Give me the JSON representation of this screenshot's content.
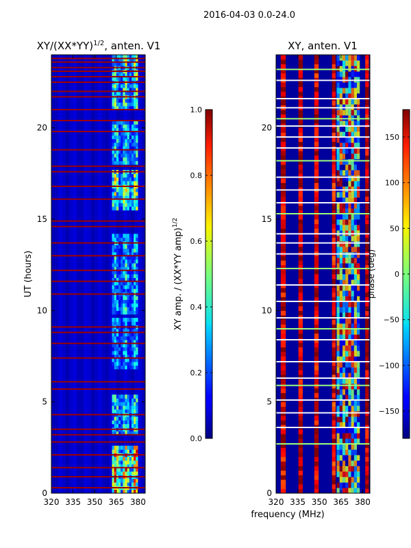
{
  "suptitle": "2016-04-03 0.0-24.0",
  "shared_xlabel": "frequency (MHz)",
  "chart_data": [
    {
      "type": "heatmap",
      "title_prefix": "XY/(XX*YY)",
      "title_exponent": "1/2",
      "title_suffix": ", anten. V1",
      "ylabel": "UT (hours)",
      "xlim": [
        320,
        385
      ],
      "ylim": [
        0,
        24
      ],
      "x_ticks": [
        {
          "value": 320,
          "label": "320"
        },
        {
          "value": 335,
          "label": "335"
        },
        {
          "value": 350,
          "label": "350"
        },
        {
          "value": 365,
          "label": "365"
        },
        {
          "value": 380,
          "label": "380"
        }
      ],
      "y_ticks": [
        {
          "value": 0,
          "label": "0"
        },
        {
          "value": 5,
          "label": "5"
        },
        {
          "value": 10,
          "label": "10"
        },
        {
          "value": 15,
          "label": "15"
        },
        {
          "value": 20,
          "label": "20"
        }
      ],
      "colorbar": {
        "label_prefix": "XY amp. / (XX*YY amp)",
        "label_exponent": "1/2",
        "range": [
          0.0,
          1.0
        ],
        "ticks": [
          {
            "value": 0.0,
            "label": "0.0"
          },
          {
            "value": 0.2,
            "label": "0.2"
          },
          {
            "value": 0.4,
            "label": "0.4"
          },
          {
            "value": 0.6,
            "label": "0.6"
          },
          {
            "value": 0.8,
            "label": "0.8"
          },
          {
            "value": 1.0,
            "label": "1.0"
          }
        ],
        "colormap": "jet"
      },
      "background_value": 0.06,
      "flagged_rows_ut": [
        0.3,
        0.9,
        1.4,
        2.1,
        2.8,
        3.2,
        3.5,
        4.3,
        5.7,
        6.1,
        7.4,
        8.2,
        8.8,
        9.1,
        10.9,
        11.6,
        12.2,
        13.0,
        13.7,
        14.6,
        14.9,
        16.1,
        16.8,
        17.6,
        17.9,
        18.8,
        19.8,
        20.4,
        21.0,
        21.7,
        22.0,
        22.5,
        22.8,
        23.1,
        23.3,
        23.6,
        23.8
      ],
      "bright_band_mhz": [
        362,
        380
      ],
      "bright_intervals_ut": [
        [
          0.0,
          2.6,
          0.72
        ],
        [
          3.2,
          5.3,
          0.45
        ],
        [
          6.8,
          9.5,
          0.35
        ],
        [
          9.8,
          14.0,
          0.38
        ],
        [
          15.5,
          17.5,
          0.55
        ],
        [
          18.0,
          20.2,
          0.42
        ],
        [
          21.0,
          24.0,
          0.5
        ]
      ]
    },
    {
      "type": "heatmap",
      "title": "XY, anten. V1",
      "xlim": [
        320,
        385
      ],
      "ylim": [
        0,
        24
      ],
      "x_ticks": [
        {
          "value": 320,
          "label": "320"
        },
        {
          "value": 335,
          "label": "335"
        },
        {
          "value": 350,
          "label": "350"
        },
        {
          "value": 365,
          "label": "365"
        },
        {
          "value": 380,
          "label": "380"
        }
      ],
      "y_ticks": [
        {
          "value": 0,
          "label": "0"
        },
        {
          "value": 5,
          "label": "5"
        },
        {
          "value": 10,
          "label": "10"
        },
        {
          "value": 15,
          "label": "15"
        },
        {
          "value": 20,
          "label": "20"
        }
      ],
      "colorbar": {
        "label": "phase (deg)",
        "range": [
          -180,
          180
        ],
        "ticks": [
          {
            "value": -150,
            "label": "−150"
          },
          {
            "value": -100,
            "label": "−100"
          },
          {
            "value": -50,
            "label": "−50"
          },
          {
            "value": 0,
            "label": "0"
          },
          {
            "value": 50,
            "label": "50"
          },
          {
            "value": 100,
            "label": "100"
          },
          {
            "value": 150,
            "label": "150"
          }
        ],
        "colormap": "jet"
      },
      "phase_stripes_mhz": [
        {
          "center": 325,
          "width": 3.5,
          "phase": 150
        },
        {
          "center": 337,
          "width": 3.0,
          "phase": 160
        },
        {
          "center": 348,
          "width": 3.0,
          "phase": 150
        },
        {
          "center": 360,
          "width": 2.5,
          "phase": 140
        },
        {
          "center": 383,
          "width": 2.5,
          "phase": 160
        }
      ],
      "background_phase": -170,
      "noisy_band_mhz": [
        362,
        378
      ],
      "flagged_rows_ut": [
        2.7,
        3.6,
        4.4,
        5.1,
        5.9,
        6.3,
        7.2,
        8.4,
        9.0,
        9.6,
        10.5,
        11.4,
        12.3,
        13.1,
        13.7,
        14.2,
        15.3,
        15.9,
        16.6,
        17.3,
        18.2,
        18.9,
        19.5,
        20.1,
        20.5,
        21.1,
        21.6,
        22.6,
        23.2
      ]
    }
  ]
}
